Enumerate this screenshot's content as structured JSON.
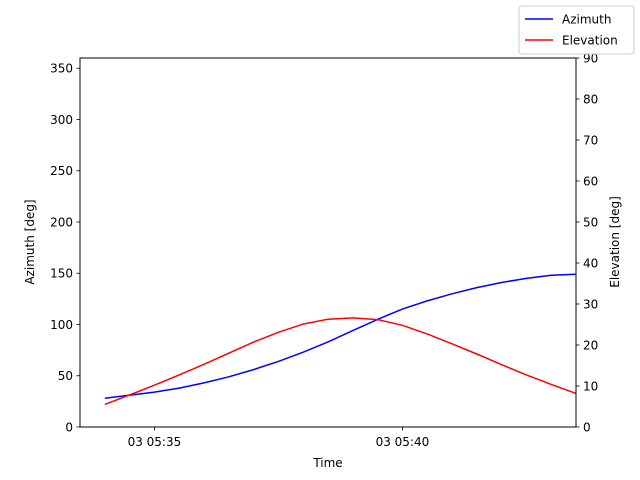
{
  "chart_data": {
    "type": "line",
    "xlabel": "Time",
    "ylabel_left": "Azimuth [deg]",
    "ylabel_right": "Elevation [deg]",
    "x_ticks": [
      "03 05:35",
      "03 05:40"
    ],
    "x_tick_minutes": [
      35,
      40
    ],
    "xlim": [
      33.5,
      43.5
    ],
    "ylim_left": [
      0,
      360
    ],
    "ylim_right": [
      0,
      90
    ],
    "yticks_left": [
      0,
      50,
      100,
      150,
      200,
      250,
      300,
      350
    ],
    "yticks_right": [
      0,
      10,
      20,
      30,
      40,
      50,
      60,
      70,
      80,
      90
    ],
    "grid": false,
    "legend_position": "top-right",
    "series": [
      {
        "name": "Azimuth",
        "axis": "left",
        "color": "#0000ff",
        "x": [
          34.0,
          34.5,
          35.0,
          35.5,
          36.0,
          36.5,
          37.0,
          37.5,
          38.0,
          38.5,
          39.0,
          39.5,
          40.0,
          40.5,
          41.0,
          41.5,
          42.0,
          42.5,
          43.0,
          43.5
        ],
        "values": [
          28,
          31,
          34,
          38,
          43,
          49,
          56,
          64,
          73,
          83,
          94,
          105,
          115,
          123,
          130,
          136,
          141,
          145,
          148,
          149
        ]
      },
      {
        "name": "Elevation",
        "axis": "right",
        "color": "#ff0000",
        "x": [
          34.0,
          34.5,
          35.0,
          35.5,
          36.0,
          36.5,
          37.0,
          37.5,
          38.0,
          38.5,
          39.0,
          39.5,
          40.0,
          40.5,
          41.0,
          41.5,
          42.0,
          42.5,
          43.0,
          43.5
        ],
        "values": [
          5.5,
          7.8,
          10.2,
          12.7,
          15.3,
          18.0,
          20.7,
          23.1,
          25.1,
          26.3,
          26.6,
          26.2,
          24.8,
          22.7,
          20.3,
          17.8,
          15.2,
          12.7,
          10.4,
          8.2
        ]
      }
    ]
  }
}
